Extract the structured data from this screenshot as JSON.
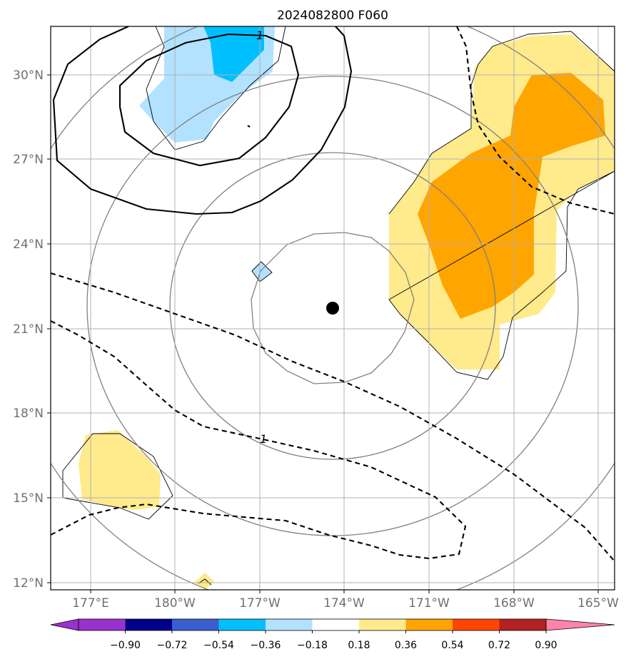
{
  "chart_data": {
    "type": "map-contour",
    "title": "2024082800 F060",
    "lon_ticks": [
      "177°E",
      "180°W",
      "177°W",
      "174°W",
      "171°W",
      "168°W",
      "165°W"
    ],
    "lat_ticks": [
      "30°N",
      "27°N",
      "24°N",
      "21°N",
      "18°N",
      "15°N",
      "12°N"
    ],
    "colorbar": {
      "tick_labels": [
        "−0.90",
        "−0.72",
        "−0.54",
        "−0.36",
        "−0.18",
        "0.18",
        "0.36",
        "0.54",
        "0.72",
        "0.90"
      ],
      "colors": [
        "#9932cc",
        "#00008b",
        "#3a5fcd",
        "#00bfff",
        "#b2e2ff",
        "#ffffff",
        "#ffea8c",
        "#ffa500",
        "#ff4500",
        "#b22222",
        "#ff82ab"
      ],
      "extend": "both"
    },
    "contour_labels": [
      "1",
      "1"
    ],
    "storm_center": {
      "lon": "174.4°W",
      "lat": "21.7°N"
    },
    "grid": true
  }
}
